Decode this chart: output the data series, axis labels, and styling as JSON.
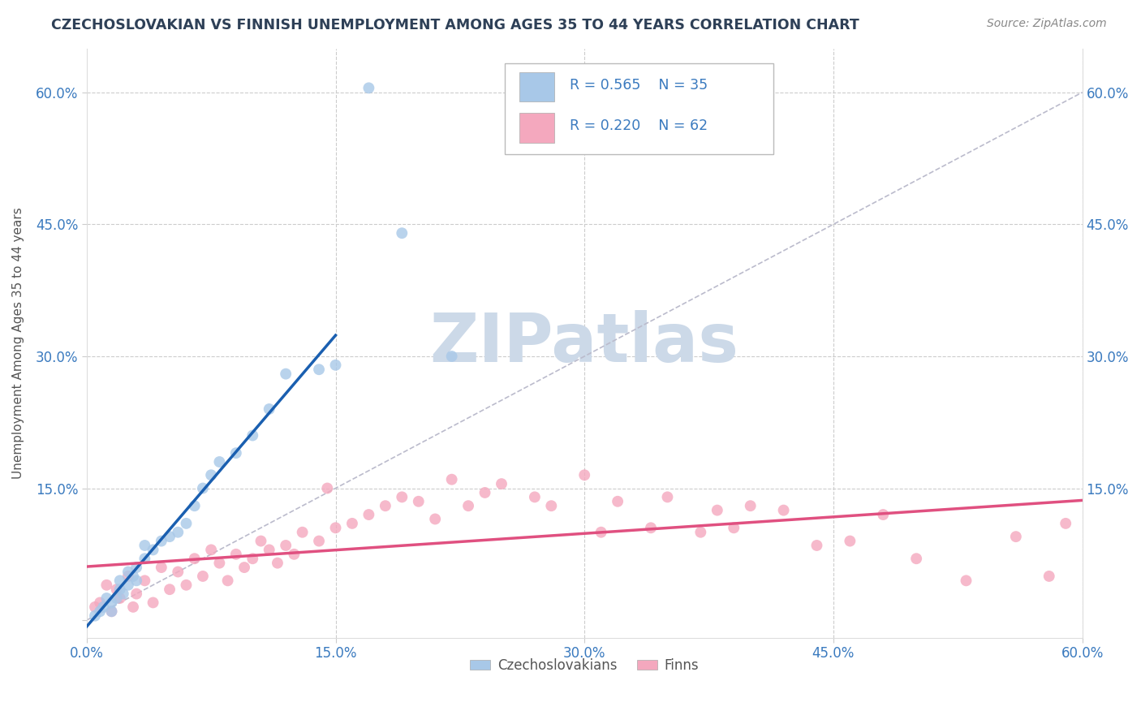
{
  "title": "CZECHOSLOVAKIAN VS FINNISH UNEMPLOYMENT AMONG AGES 35 TO 44 YEARS CORRELATION CHART",
  "source": "Source: ZipAtlas.com",
  "ylabel": "Unemployment Among Ages 35 to 44 years",
  "xlim": [
    0.0,
    60.0
  ],
  "ylim": [
    -2.0,
    65.0
  ],
  "xticks": [
    0.0,
    15.0,
    30.0,
    45.0,
    60.0
  ],
  "xtick_labels": [
    "0.0%",
    "15.0%",
    "30.0%",
    "45.0%",
    "60.0%"
  ],
  "yticks": [
    0.0,
    15.0,
    30.0,
    45.0,
    60.0
  ],
  "ytick_labels": [
    "",
    "15.0%",
    "30.0%",
    "45.0%",
    "60.0%"
  ],
  "background_color": "#ffffff",
  "grid_color": "#cccccc",
  "title_color": "#2e4057",
  "axis_color": "#555555",
  "watermark_text": "ZIPatlas",
  "watermark_color": "#ccd9e8",
  "legend_r1": "R = 0.565",
  "legend_n1": "N = 35",
  "legend_r2": "R = 0.220",
  "legend_n2": "N = 62",
  "legend_color": "#3a7abf",
  "czechoslovakian_color": "#a8c8e8",
  "finn_color": "#f4a8be",
  "czechoslovakian_line_color": "#1a5fb0",
  "finn_line_color": "#e05080",
  "diagonal_line_color": "#bbbbcc",
  "czech_x": [
    0.5,
    0.8,
    1.0,
    1.2,
    1.5,
    1.5,
    1.8,
    2.0,
    2.0,
    2.2,
    2.5,
    2.5,
    2.8,
    3.0,
    3.0,
    3.5,
    3.5,
    4.0,
    4.5,
    5.0,
    5.5,
    6.0,
    6.5,
    7.0,
    7.5,
    8.0,
    9.0,
    10.0,
    11.0,
    12.0,
    14.0,
    15.0,
    17.0,
    19.0,
    22.0
  ],
  "czech_y": [
    0.5,
    1.0,
    1.5,
    2.5,
    1.0,
    2.0,
    2.5,
    3.5,
    4.5,
    3.0,
    4.0,
    5.5,
    5.0,
    4.5,
    6.0,
    7.0,
    8.5,
    8.0,
    9.0,
    9.5,
    10.0,
    11.0,
    13.0,
    15.0,
    16.5,
    18.0,
    19.0,
    21.0,
    24.0,
    28.0,
    28.5,
    29.0,
    60.5,
    44.0,
    30.0
  ],
  "finn_x": [
    0.5,
    0.8,
    1.2,
    1.5,
    1.8,
    2.0,
    2.5,
    2.8,
    3.0,
    3.5,
    4.0,
    4.5,
    5.0,
    5.5,
    6.0,
    6.5,
    7.0,
    7.5,
    8.0,
    8.5,
    9.0,
    9.5,
    10.0,
    10.5,
    11.0,
    11.5,
    12.0,
    12.5,
    13.0,
    14.0,
    14.5,
    15.0,
    16.0,
    17.0,
    18.0,
    19.0,
    20.0,
    21.0,
    22.0,
    23.0,
    24.0,
    25.0,
    27.0,
    28.0,
    30.0,
    31.0,
    32.0,
    34.0,
    35.0,
    37.0,
    38.0,
    39.0,
    40.0,
    42.0,
    44.0,
    46.0,
    48.0,
    50.0,
    53.0,
    56.0,
    58.0,
    59.0
  ],
  "finn_y": [
    1.5,
    2.0,
    4.0,
    1.0,
    3.5,
    2.5,
    5.0,
    1.5,
    3.0,
    4.5,
    2.0,
    6.0,
    3.5,
    5.5,
    4.0,
    7.0,
    5.0,
    8.0,
    6.5,
    4.5,
    7.5,
    6.0,
    7.0,
    9.0,
    8.0,
    6.5,
    8.5,
    7.5,
    10.0,
    9.0,
    15.0,
    10.5,
    11.0,
    12.0,
    13.0,
    14.0,
    13.5,
    11.5,
    16.0,
    13.0,
    14.5,
    15.5,
    14.0,
    13.0,
    16.5,
    10.0,
    13.5,
    10.5,
    14.0,
    10.0,
    12.5,
    10.5,
    13.0,
    12.5,
    8.5,
    9.0,
    12.0,
    7.0,
    4.5,
    9.5,
    5.0,
    11.0
  ],
  "legend_label_czech": "Czechoslovakians",
  "legend_label_finn": "Finns"
}
